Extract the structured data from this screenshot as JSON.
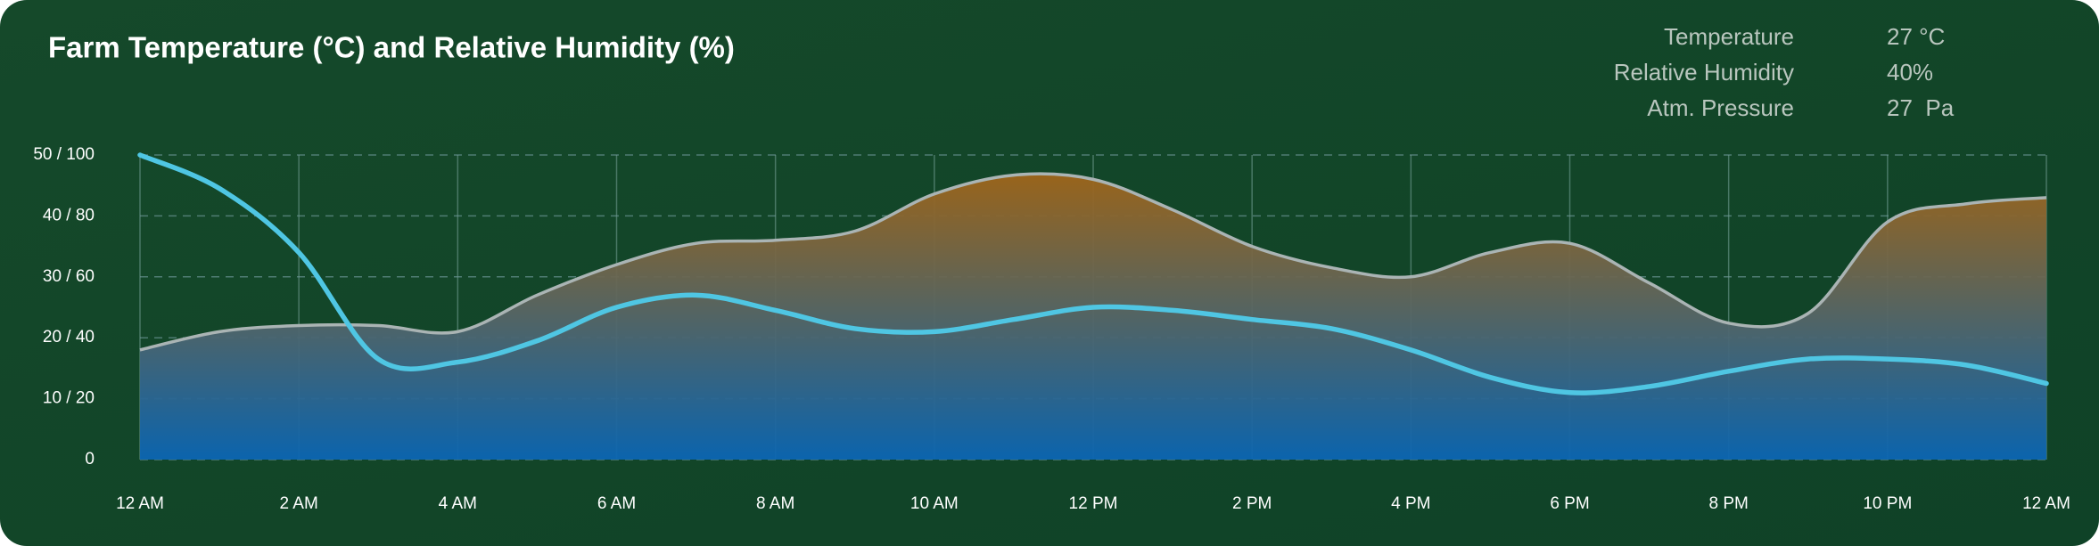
{
  "chart_data": {
    "type": "area-line",
    "title": "Farm Temperature (°C) and Relative Humidity (%)",
    "categories": [
      "12 AM",
      null,
      "2 AM",
      null,
      "4 AM",
      null,
      "6 AM",
      null,
      "8 AM",
      null,
      "10 AM",
      null,
      "12 PM",
      null,
      "2 PM",
      null,
      "4 PM",
      null,
      "6 PM",
      null,
      "8 PM",
      null,
      "10 PM",
      null,
      "12 AM"
    ],
    "series": [
      {
        "type": "area",
        "color": "#aab4b4",
        "fill_top": "#a0661a",
        "fill_bottom": "#0b66b4",
        "values": [
          18,
          21,
          22,
          22,
          21,
          27,
          32,
          35.5,
          36,
          37.5,
          43.6,
          46.7,
          46,
          41,
          35,
          31.5,
          30,
          34,
          35.5,
          29,
          22.4,
          24,
          39,
          42,
          43
        ]
      },
      {
        "type": "line",
        "axis": "y2",
        "color": "#4fc6e3",
        "values": [
          100,
          89,
          68,
          33,
          32,
          39,
          50,
          54,
          49,
          43,
          42,
          46,
          50,
          49,
          46,
          43,
          36,
          27,
          22,
          24,
          29,
          33,
          33,
          31,
          25
        ]
      }
    ],
    "ylim": [
      0,
      50
    ],
    "yticks": [
      0,
      {
        "value": 10,
        "label": "10 / 20"
      },
      {
        "value": 20,
        "label": "20 / 40"
      },
      {
        "value": 30,
        "label": "30 / 60"
      },
      {
        "value": 40,
        "label": "40 / 80"
      },
      {
        "value": 50,
        "label": "50 / 100"
      }
    ],
    "y2lim": [
      0,
      100
    ],
    "grid": true
  },
  "stats": [
    {
      "label": "Temperature",
      "value": "27 °C"
    },
    {
      "label": "Relative Humidity",
      "value": "40%"
    },
    {
      "label": "Atm. Pressure",
      "value": "27  Pa"
    }
  ]
}
